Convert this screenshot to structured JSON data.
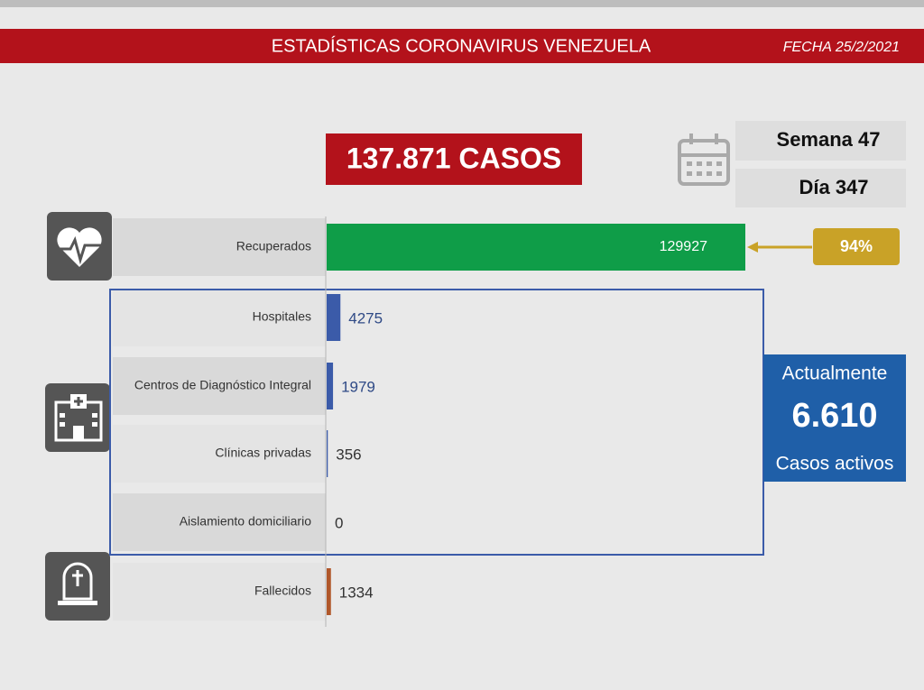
{
  "header": {
    "title": "ESTADÍSTICAS CORONAVIRUS VENEZUELA",
    "date": "FECHA 25/2/2021"
  },
  "total": "137.871 CASOS",
  "week": "Semana 47",
  "day": "Día 347",
  "recovered_share": "94%",
  "active": {
    "label_top": "Actualmente",
    "count": "6.610",
    "label_bottom": "Casos activos"
  },
  "chart_data": {
    "type": "bar",
    "orientation": "horizontal",
    "categories": [
      "Recuperados",
      "Hospitales",
      "Centros de Diagnóstico Integral",
      "Clínicas privadas",
      "Aislamiento domiciliario",
      "Fallecidos"
    ],
    "values": [
      129927,
      4275,
      1979,
      356,
      0,
      1334
    ],
    "colors": [
      "#0f9d48",
      "#3b5ba9",
      "#3b5ba9",
      "#3b5ba9",
      "#3b5ba9",
      "#b0572a"
    ]
  }
}
